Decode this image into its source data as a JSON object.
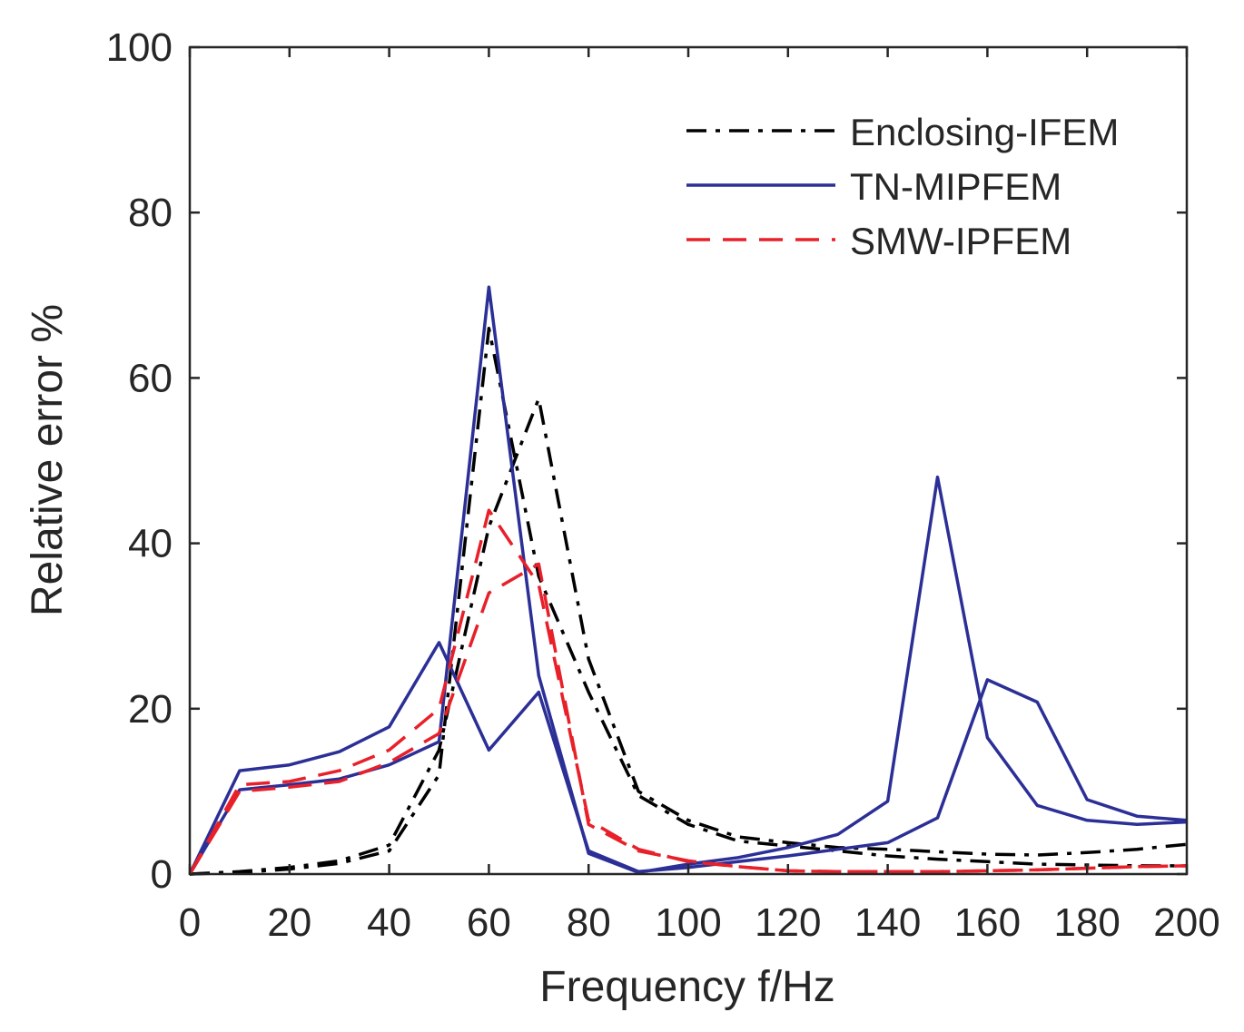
{
  "chart_data": {
    "type": "line",
    "title": "",
    "xlabel": "Frequency  f/Hz",
    "ylabel": "Relative error %",
    "xlim": [
      0,
      200
    ],
    "ylim": [
      0,
      100
    ],
    "xticks": [
      0,
      20,
      40,
      60,
      80,
      100,
      120,
      140,
      160,
      180,
      200
    ],
    "yticks": [
      0,
      20,
      40,
      60,
      80,
      100
    ],
    "grid": false,
    "legend_position": "top-right",
    "x": [
      0,
      10,
      20,
      30,
      40,
      50,
      60,
      70,
      80,
      90,
      100,
      110,
      120,
      130,
      140,
      150,
      160,
      170,
      180,
      190,
      200
    ],
    "series": [
      {
        "name": "Enclosing-IFEM",
        "legend": true,
        "style": "dashdot",
        "color": "#000000",
        "values": [
          0,
          0.3,
          0.8,
          1.6,
          3.5,
          15,
          42,
          57.5,
          26,
          10,
          6.5,
          4.5,
          3.8,
          3.2,
          3.0,
          2.7,
          2.4,
          2.3,
          2.6,
          3.0,
          3.6
        ]
      },
      {
        "name": "Enclosing-IFEM",
        "legend": false,
        "style": "dashdot",
        "color": "#000000",
        "values": [
          0,
          0.2,
          0.6,
          1.3,
          2.8,
          12,
          66,
          36,
          22,
          9.5,
          6.0,
          4.0,
          3.4,
          2.8,
          2.2,
          1.8,
          1.5,
          1.2,
          1.1,
          1.0,
          1.0
        ]
      },
      {
        "name": "TN-MIPFEM",
        "legend": true,
        "style": "solid",
        "color": "#2B2F96",
        "values": [
          0,
          12.5,
          13.2,
          14.8,
          17.8,
          28,
          15,
          22,
          2.8,
          0.3,
          0.8,
          1.5,
          2.2,
          3.0,
          3.8,
          6.8,
          23.5,
          20.8,
          9.0,
          7.0,
          6.5
        ]
      },
      {
        "name": "TN-MIPFEM",
        "legend": false,
        "style": "solid",
        "color": "#2B2F96",
        "values": [
          0,
          10.2,
          10.8,
          11.5,
          13.2,
          16,
          71,
          24,
          2.5,
          0.2,
          1.2,
          2.0,
          3.2,
          4.8,
          8.8,
          48,
          16.5,
          8.3,
          6.5,
          6.0,
          6.3
        ]
      },
      {
        "name": "SMW-IPFEM",
        "legend": true,
        "style": "dashed",
        "color": "#E8202A",
        "values": [
          0,
          10.8,
          11.2,
          12.5,
          15.0,
          20,
          44,
          35,
          6.5,
          3.0,
          1.5,
          0.9,
          0.4,
          0.3,
          0.3,
          0.3,
          0.4,
          0.5,
          0.7,
          0.9,
          1.0
        ]
      },
      {
        "name": "SMW-IPFEM",
        "legend": false,
        "style": "dashed",
        "color": "#E8202A",
        "values": [
          0,
          10.0,
          10.5,
          11.2,
          13.5,
          17,
          34,
          37.5,
          6.0,
          2.8,
          1.6,
          0.9,
          0.4,
          0.3,
          0.3,
          0.3,
          0.4,
          0.5,
          0.7,
          0.9,
          1.0
        ]
      }
    ]
  }
}
